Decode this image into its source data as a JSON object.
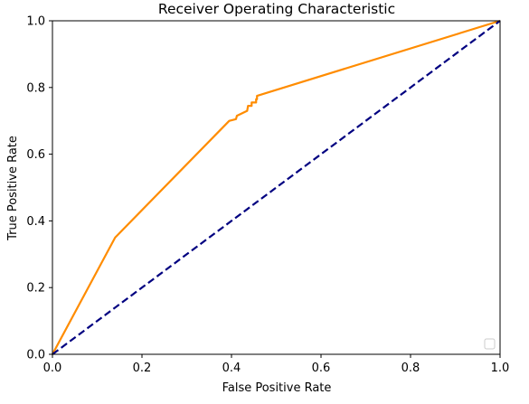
{
  "chart_data": {
    "type": "line",
    "title": "Receiver Operating Characteristic",
    "xlabel": "False Positive Rate",
    "ylabel": "True Positive Rate",
    "xlim": [
      0,
      1
    ],
    "ylim": [
      0,
      1
    ],
    "xticks": [
      "0.0",
      "0.2",
      "0.4",
      "0.6",
      "0.8",
      "1.0"
    ],
    "yticks": [
      "0.0",
      "0.2",
      "0.4",
      "0.6",
      "0.8",
      "1.0"
    ],
    "grid": false,
    "legend": {
      "placement": "lower-right",
      "entries": []
    },
    "series": [
      {
        "color": "#ff8c00",
        "style": "solid",
        "x": [
          0.0,
          0.14,
          0.395,
          0.41,
          0.412,
          0.435,
          0.437,
          0.445,
          0.445,
          0.455,
          0.455,
          0.457,
          0.457,
          1.0
        ],
        "y": [
          0.0,
          0.35,
          0.7,
          0.705,
          0.715,
          0.73,
          0.745,
          0.745,
          0.755,
          0.755,
          0.765,
          0.765,
          0.775,
          1.0
        ]
      },
      {
        "color": "#000080",
        "style": "dashed",
        "x": [
          0.0,
          1.0
        ],
        "y": [
          0.0,
          1.0
        ]
      }
    ]
  }
}
